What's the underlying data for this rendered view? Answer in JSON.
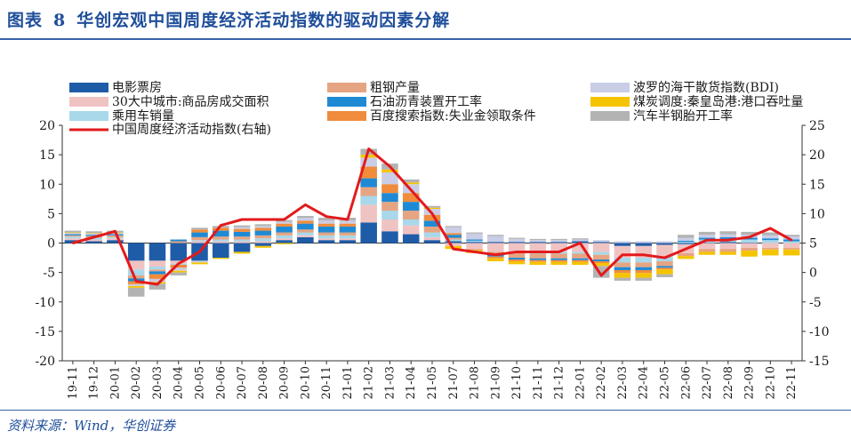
{
  "figure": {
    "label": "图表",
    "number": "8",
    "title": "华创宏观中国周度经济活动指数的驱动因素分解",
    "source": "资料来源：Wind，华创证券"
  },
  "colors": {
    "title": "#1f4e9a",
    "rule": "#3a62a8"
  },
  "chart_data": {
    "type": "bar",
    "stacked": true,
    "title": "华创宏观中国周度经济活动指数的驱动因素分解",
    "ylabel_left": "",
    "ylabel_right": "右轴",
    "ylim_left": [
      -20,
      20
    ],
    "ylim_right": [
      -15,
      25
    ],
    "yticks_left": [
      20,
      15,
      10,
      5,
      0,
      -5,
      -10,
      -15,
      -20
    ],
    "yticks_right": [
      25,
      20,
      15,
      10,
      5,
      0,
      -5,
      -10,
      -15
    ],
    "categories": [
      "19-11",
      "19-12",
      "20-01",
      "20-02",
      "20-03",
      "20-04",
      "20-05",
      "20-06",
      "20-07",
      "20-08",
      "20-09",
      "20-10",
      "20-11",
      "21-01",
      "21-02",
      "21-03",
      "21-04",
      "21-05",
      "21-07",
      "21-08",
      "21-09",
      "21-10",
      "21-11",
      "21-12",
      "22-01",
      "22-02",
      "22-03",
      "22-04",
      "22-05",
      "22-06",
      "22-07",
      "22-08",
      "22-09",
      "22-10",
      "22-11"
    ],
    "legend_position": "top",
    "series": [
      {
        "name": "电影票房",
        "color": "#1f5ca8",
        "values": [
          0.5,
          0.3,
          0.5,
          -3.0,
          -3.0,
          -3.0,
          -3.0,
          -2.5,
          -1.5,
          -0.5,
          0.5,
          1.0,
          0.5,
          0.5,
          3.5,
          2.0,
          1.5,
          0.5,
          0.3,
          0.2,
          0.2,
          0.2,
          0.2,
          0.2,
          0.3,
          0.2,
          -0.5,
          -0.5,
          -0.3,
          -0.2,
          0.1,
          0.2,
          0.1,
          0.0,
          0.0
        ]
      },
      {
        "name": "30大中城市:商品房成交面积",
        "color": "#f0c3c3",
        "values": [
          0.3,
          0.3,
          0.3,
          -1.5,
          -1.0,
          -0.5,
          0.3,
          0.3,
          0.3,
          0.3,
          0.3,
          0.3,
          0.3,
          0.3,
          3.0,
          2.0,
          1.5,
          0.5,
          -0.5,
          -1.0,
          -1.5,
          -1.5,
          -1.5,
          -1.5,
          -1.5,
          -1.5,
          -2.0,
          -2.0,
          -2.0,
          -1.5,
          -1.0,
          -1.0,
          -0.8,
          -0.8,
          -0.8
        ]
      },
      {
        "name": "乘用车销量",
        "color": "#a8d8ea",
        "values": [
          0.3,
          0.3,
          0.2,
          -1.0,
          -0.5,
          -0.2,
          0.2,
          0.3,
          0.3,
          0.5,
          0.5,
          0.5,
          0.5,
          0.5,
          1.5,
          1.5,
          1.0,
          0.8,
          0.3,
          0.2,
          0.0,
          -0.2,
          -0.3,
          -0.3,
          -0.3,
          -0.5,
          -0.8,
          -0.8,
          -0.8,
          0.2,
          0.5,
          0.5,
          0.5,
          0.5,
          0.3
        ]
      },
      {
        "name": "粗钢产量",
        "color": "#e6a582",
        "values": [
          0.2,
          0.3,
          0.3,
          -0.5,
          -0.3,
          0.3,
          0.5,
          0.5,
          0.5,
          0.5,
          0.5,
          0.5,
          0.5,
          0.5,
          1.5,
          1.5,
          1.5,
          1.0,
          0.3,
          -0.2,
          -0.5,
          -0.8,
          -0.8,
          -0.8,
          -0.8,
          -0.8,
          -0.8,
          -0.8,
          -0.8,
          -0.5,
          -0.5,
          -0.5,
          -0.5,
          -0.3,
          -0.3
        ]
      },
      {
        "name": "石油沥青装置开工率",
        "color": "#1f8ad4",
        "values": [
          0.2,
          0.2,
          0.2,
          -0.5,
          -0.5,
          0.3,
          0.8,
          1.0,
          0.8,
          0.8,
          1.0,
          1.0,
          1.0,
          1.0,
          1.5,
          1.5,
          1.5,
          1.0,
          0.5,
          0.2,
          -0.3,
          -0.3,
          -0.3,
          -0.3,
          -0.3,
          -0.3,
          -0.5,
          -0.5,
          -0.3,
          0.2,
          0.3,
          0.3,
          0.3,
          0.3,
          0.3
        ]
      },
      {
        "name": "百度搜索指数:失业金领取条件",
        "color": "#f08c3c",
        "values": [
          0.0,
          0.0,
          0.0,
          -0.5,
          -0.8,
          -0.5,
          0.5,
          0.5,
          0.5,
          0.5,
          0.5,
          0.5,
          0.5,
          0.5,
          2.0,
          1.5,
          1.5,
          1.0,
          0.3,
          0.0,
          -0.3,
          -0.3,
          -0.3,
          -0.3,
          -0.3,
          -0.3,
          -0.5,
          -0.5,
          -0.3,
          0.0,
          0.0,
          0.0,
          0.0,
          0.0,
          0.0
        ]
      },
      {
        "name": "波罗的海干散货指数(BDI)",
        "color": "#c9cde6",
        "values": [
          0.2,
          0.2,
          0.2,
          -0.3,
          -0.5,
          -0.5,
          -0.3,
          0.0,
          0.3,
          0.3,
          0.3,
          0.5,
          0.5,
          0.5,
          1.5,
          2.0,
          1.5,
          1.0,
          1.0,
          1.0,
          1.0,
          0.5,
          0.3,
          0.3,
          0.3,
          0.3,
          0.3,
          0.3,
          0.3,
          0.5,
          0.5,
          0.5,
          0.5,
          0.5,
          0.5
        ]
      },
      {
        "name": "煤炭调度:秦皇岛港:港口吞吐量",
        "color": "#f5c400",
        "values": [
          0.1,
          0.1,
          0.1,
          -0.3,
          -0.3,
          -0.3,
          -0.3,
          -0.2,
          -0.3,
          -0.3,
          -0.2,
          0.0,
          0.0,
          0.0,
          0.5,
          0.5,
          0.3,
          0.2,
          -0.5,
          -0.5,
          -0.5,
          -0.5,
          -0.5,
          -0.5,
          -0.5,
          -0.5,
          -0.8,
          -0.8,
          -0.8,
          -0.5,
          -0.5,
          -0.5,
          -1.0,
          -1.0,
          -1.0
        ]
      },
      {
        "name": "汽车半钢胎开工率",
        "color": "#b3b3b3",
        "values": [
          0.3,
          0.3,
          0.3,
          -1.5,
          -1.0,
          -0.5,
          0.3,
          0.3,
          0.3,
          0.3,
          0.3,
          0.3,
          0.5,
          0.5,
          1.0,
          1.0,
          0.5,
          0.3,
          0.2,
          0.2,
          0.2,
          0.2,
          0.2,
          0.2,
          0.2,
          -2.0,
          -0.5,
          -0.5,
          -0.5,
          0.5,
          0.5,
          0.5,
          0.5,
          0.5,
          0.3
        ]
      }
    ],
    "line": {
      "name": "中国周度经济活动指数(右轴)",
      "color": "#e31a1c",
      "axis": "right",
      "values": [
        5.0,
        6.0,
        7.0,
        -1.5,
        -2.0,
        1.5,
        3.5,
        8.0,
        9.0,
        9.0,
        9.0,
        11.5,
        9.5,
        9.0,
        21.0,
        18.0,
        14.0,
        10.0,
        4.0,
        3.5,
        3.0,
        3.5,
        3.5,
        3.5,
        5.0,
        -0.5,
        3.0,
        3.0,
        2.5,
        4.0,
        5.5,
        5.5,
        6.0,
        7.5,
        5.5
      ]
    }
  }
}
